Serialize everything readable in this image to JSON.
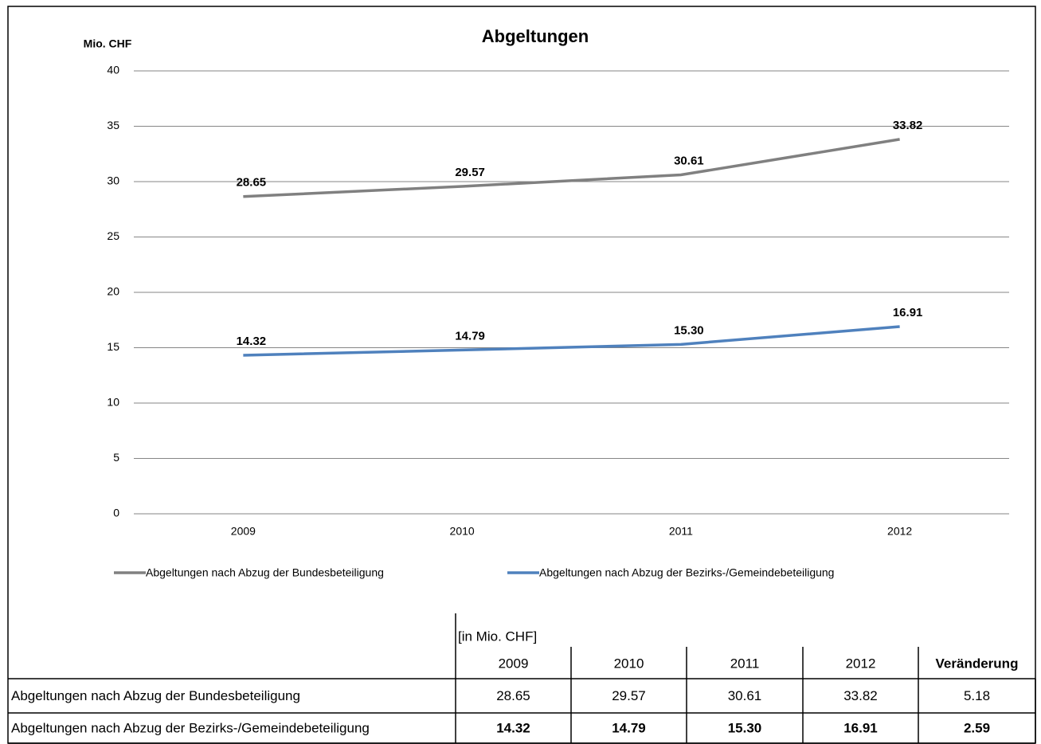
{
  "chart_data": {
    "type": "line",
    "title": "Abgeltungen",
    "y_label": "Mio. CHF",
    "categories": [
      "2009",
      "2010",
      "2011",
      "2012"
    ],
    "ylim": [
      0,
      40
    ],
    "yticks": [
      0,
      5,
      10,
      15,
      20,
      25,
      30,
      35,
      40
    ],
    "grid": true,
    "legend": "bottom",
    "series": [
      {
        "name": "Abgeltungen nach Abzug der Bundesbeteiligung",
        "color": "#808080",
        "values": [
          28.65,
          29.57,
          30.61,
          33.82
        ],
        "value_labels": [
          "28.65",
          "29.57",
          "30.61",
          "33.82"
        ]
      },
      {
        "name": "Abgeltungen nach Abzug der Bezirks-/Gemeindebeteiligung",
        "color": "#4f81bd",
        "values": [
          14.32,
          14.79,
          15.3,
          16.91
        ],
        "value_labels": [
          "14.32",
          "14.79",
          "15.30",
          "16.91"
        ]
      }
    ]
  },
  "table": {
    "unit": "[in Mio. CHF]",
    "columns": [
      "2009",
      "2010",
      "2011",
      "2012",
      "Veränderung"
    ],
    "rows": [
      {
        "label": "Abgeltungen nach Abzug der Bundesbeteiligung",
        "cells": [
          "28.65",
          "29.57",
          "30.61",
          "33.82",
          "5.18"
        ]
      },
      {
        "label": "Abgeltungen nach Abzug der Bezirks-/Gemeindebeteiligung",
        "cells": [
          "14.32",
          "14.79",
          "15.30",
          "16.91",
          "2.59"
        ]
      }
    ]
  }
}
